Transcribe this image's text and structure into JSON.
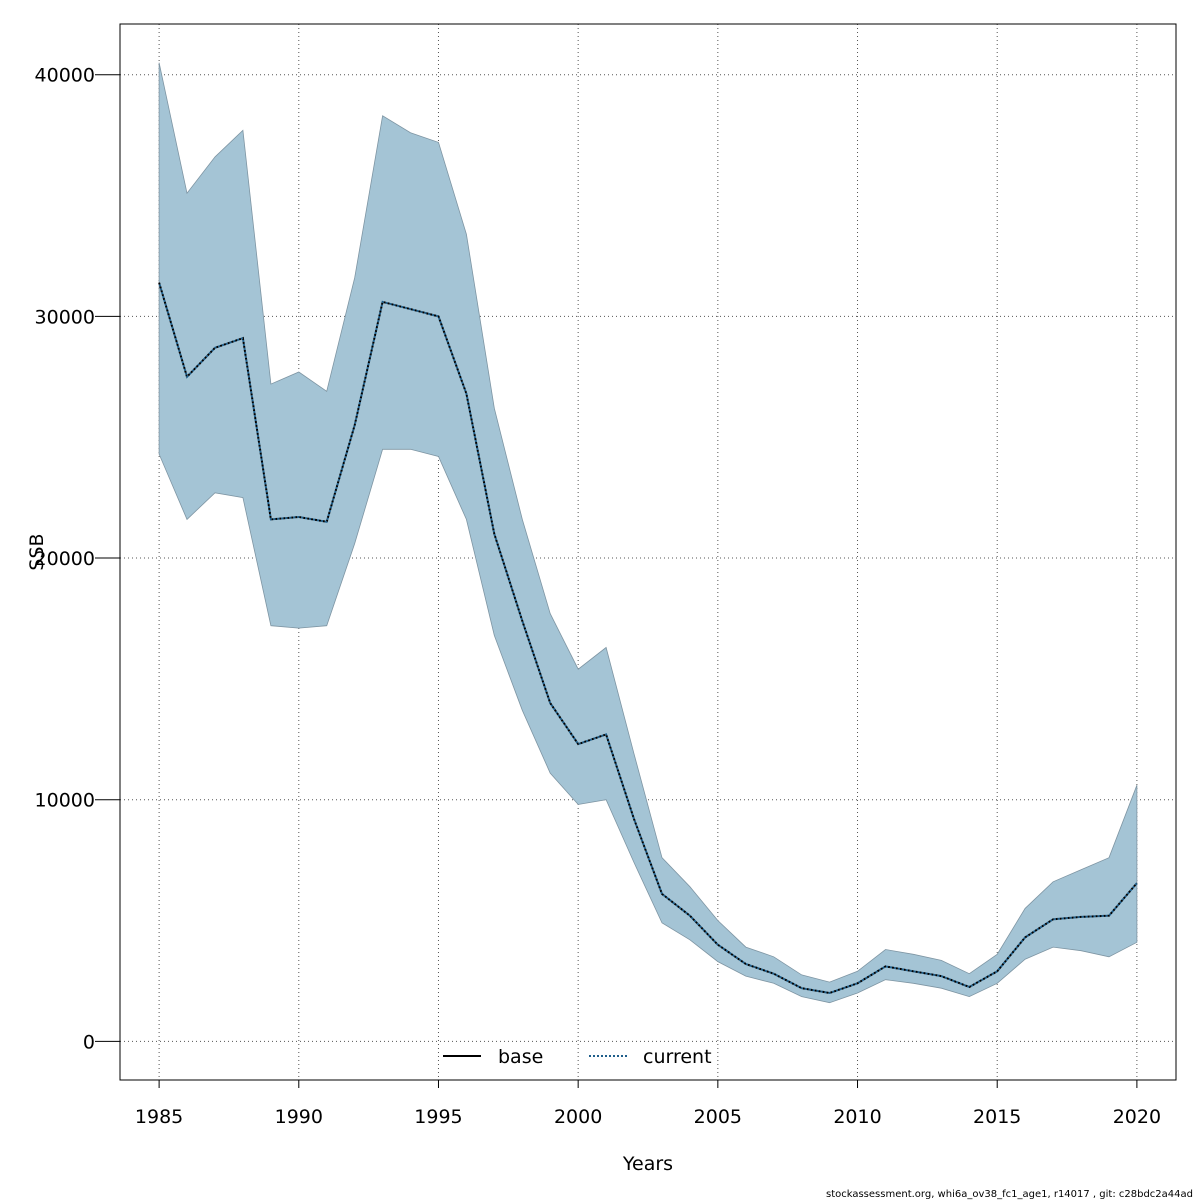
{
  "chart_data": {
    "type": "line",
    "xlabel": "Years",
    "ylabel": "SSB",
    "xlim": [
      1983.6,
      2021.4
    ],
    "ylim": [
      -1600,
      42100
    ],
    "x_ticks": [
      1985,
      1990,
      1995,
      2000,
      2005,
      2010,
      2015,
      2020
    ],
    "y_ticks": [
      0,
      10000,
      20000,
      30000,
      40000
    ],
    "grid": true,
    "legend_position": "bottom-center",
    "x": [
      1985,
      1986,
      1987,
      1988,
      1989,
      1990,
      1991,
      1992,
      1993,
      1994,
      1995,
      1996,
      1997,
      1998,
      1999,
      2000,
      2001,
      2002,
      2003,
      2004,
      2005,
      2006,
      2007,
      2008,
      2009,
      2010,
      2011,
      2012,
      2013,
      2014,
      2015,
      2016,
      2017,
      2018,
      2019,
      2020
    ],
    "series": [
      {
        "name": "base",
        "line_style": "solid",
        "color": "#000000",
        "values": [
          31400,
          27500,
          28700,
          29100,
          21600,
          21700,
          21500,
          25500,
          30600,
          30300,
          30000,
          26800,
          21000,
          17400,
          14000,
          12300,
          12700,
          9200,
          6100,
          5200,
          4000,
          3200,
          2800,
          2200,
          2000,
          2400,
          3100,
          2900,
          2700,
          2250,
          2900,
          4300,
          5050,
          5150,
          5200,
          6550
        ]
      },
      {
        "name": "current",
        "line_style": "dotted",
        "color": "#1f5f8b",
        "values": [
          31400,
          27500,
          28700,
          29100,
          21600,
          21700,
          21500,
          25500,
          30600,
          30300,
          30000,
          26800,
          21000,
          17400,
          14000,
          12300,
          12700,
          9200,
          6100,
          5200,
          4000,
          3200,
          2800,
          2200,
          2000,
          2400,
          3100,
          2900,
          2700,
          2250,
          2900,
          4300,
          5050,
          5150,
          5200,
          6550
        ]
      }
    ],
    "confidence_band": {
      "color": "#a4c4d5",
      "lower": [
        24300,
        21600,
        22700,
        22500,
        17200,
        17100,
        17200,
        20600,
        24500,
        24500,
        24200,
        21600,
        16800,
        13700,
        11100,
        9800,
        10000,
        7400,
        4900,
        4200,
        3300,
        2700,
        2400,
        1850,
        1600,
        2000,
        2550,
        2400,
        2200,
        1850,
        2400,
        3400,
        3900,
        3750,
        3500,
        4100
      ],
      "upper": [
        40500,
        35100,
        36600,
        37700,
        27200,
        27700,
        26900,
        31600,
        38300,
        37600,
        37200,
        33400,
        26200,
        21600,
        17700,
        15400,
        16300,
        11900,
        7600,
        6400,
        5000,
        3900,
        3500,
        2750,
        2450,
        2900,
        3800,
        3600,
        3350,
        2800,
        3600,
        5500,
        6600,
        7100,
        7600,
        10600
      ]
    }
  },
  "footer": "stockassessment.org, whi6a_ov38_fc1_age1, r14017 , git: c28bdc2a44ad"
}
